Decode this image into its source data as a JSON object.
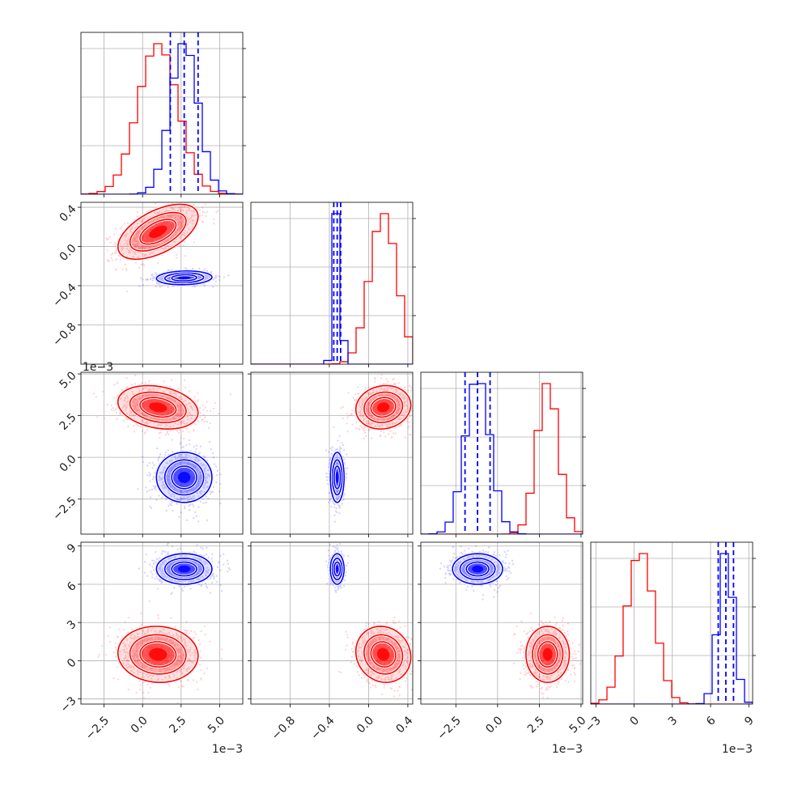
{
  "chart_data": {
    "type": "corner",
    "description_free": true,
    "grid": true,
    "colors": {
      "series_a": "#ff0000",
      "series_b": "#0000ff",
      "frame": "#000000",
      "grid": "#b0b0b0"
    },
    "params": [
      {
        "range": [
          -4.0,
          6.5
        ],
        "ticks": [
          -2.5,
          0.0,
          2.5,
          5.0
        ],
        "tick_labels": [
          "−2.5",
          "0.0",
          "2.5",
          "5.0"
        ],
        "exponent": "1e−3"
      },
      {
        "range": [
          -1.2,
          0.45
        ],
        "ticks": [
          -0.8,
          -0.4,
          0.0,
          0.4
        ],
        "tick_labels": [
          "−0.8",
          "−0.4",
          "0.0",
          "0.4"
        ],
        "exponent": ""
      },
      {
        "range": [
          -4.6,
          5.1
        ],
        "ticks": [
          -2.5,
          0.0,
          2.5,
          5.0
        ],
        "tick_labels": [
          "−2.5",
          "0.0",
          "2.5",
          "5.0"
        ],
        "exponent": "1e−3"
      },
      {
        "range": [
          -3.4,
          9.3
        ],
        "ticks": [
          -3,
          0,
          3,
          6,
          9
        ],
        "tick_labels": [
          "−3",
          "0",
          "3",
          "6",
          "9"
        ],
        "exponent": "1e−3"
      }
    ],
    "series": [
      {
        "color": "#ff0000",
        "means": [
          1.0,
          0.15,
          3.0,
          0.5
        ],
        "sds": [
          1.3,
          0.14,
          0.65,
          1.1
        ],
        "corr": [
          [
            0,
            1,
            0.55
          ],
          [
            0,
            2,
            -0.25
          ],
          [
            1,
            2,
            0.1
          ],
          [
            0,
            3,
            -0.05
          ],
          [
            1,
            3,
            -0.1
          ],
          [
            2,
            3,
            0.0
          ]
        ],
        "quantile_lines": false
      },
      {
        "color": "#0000ff",
        "means": [
          2.7,
          -0.32,
          -1.2,
          7.2
        ],
        "sds": [
          0.9,
          0.035,
          0.75,
          0.6
        ],
        "corr": [
          [
            0,
            1,
            0.1
          ],
          [
            0,
            2,
            0.0
          ],
          [
            1,
            2,
            0.0
          ],
          [
            0,
            3,
            0.0
          ],
          [
            1,
            3,
            0.0
          ],
          [
            2,
            3,
            0.0
          ]
        ],
        "quantile_lines": true,
        "quantiles": [
          [
            1.8,
            2.7,
            3.6
          ],
          [
            -0.355,
            -0.32,
            -0.285
          ],
          [
            -1.95,
            -1.2,
            -0.45
          ],
          [
            6.6,
            7.2,
            7.8
          ]
        ]
      }
    ]
  }
}
